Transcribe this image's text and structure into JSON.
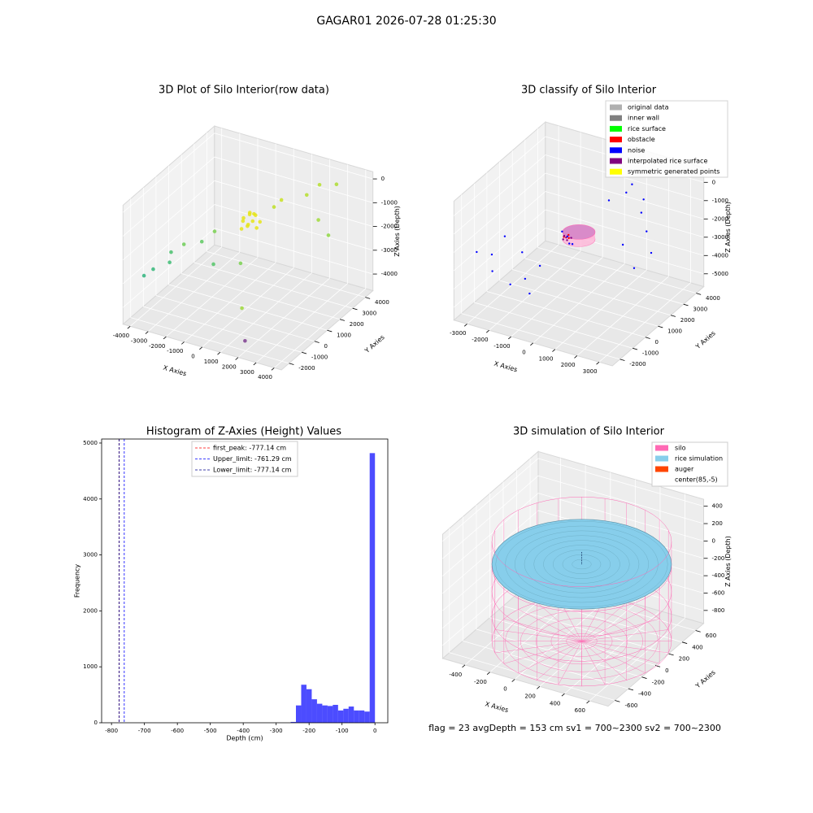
{
  "suptitle": "GAGAR01 2026-07-28 01:25:30",
  "chart_data": [
    {
      "type": "scatter3d",
      "title": "3D Plot of Silo Interior(row data)",
      "xlabel": "X Axies",
      "ylabel": "Y Axies",
      "zlabel": "Z Axies (Depth)",
      "xlim": [
        -4400,
        4400
      ],
      "xticks": [
        -4000,
        -3000,
        -2000,
        -1000,
        0,
        1000,
        2000,
        3000,
        4000
      ],
      "ylim": [
        -2600,
        4600
      ],
      "yticks": [
        -2000,
        -1000,
        0,
        1000,
        2000,
        3000,
        4000
      ],
      "zlim": [
        -4700,
        300
      ],
      "zticks": [
        -4000,
        -3000,
        -2000,
        -1000,
        0
      ],
      "points": {
        "x": [
          -600,
          -400,
          -200,
          0,
          200,
          -500,
          -300,
          -100,
          100,
          -700,
          -250,
          50,
          1500,
          2500,
          3200,
          -1500,
          800,
          2000,
          -2500,
          -3000,
          -2000,
          -3500,
          -3800,
          -2800,
          -1000,
          1000,
          2800,
          600,
          1500,
          1600
        ],
        "y": [
          1500,
          1700,
          1300,
          1600,
          1400,
          1200,
          1900,
          1100,
          1800,
          1600,
          1500,
          1300,
          3500,
          3000,
          2800,
          500,
          2500,
          3800,
          -500,
          -800,
          200,
          -1500,
          -1800,
          -1200,
          -300,
          -1000,
          4000,
          2200,
          -1600,
          -1500
        ],
        "z": [
          -1300,
          -1200,
          -1400,
          -1100,
          -1500,
          -1600,
          -1250,
          -1350,
          -1450,
          -1500,
          -1000,
          -1200,
          -800,
          -1400,
          -1800,
          -1600,
          -700,
          -400,
          -1900,
          -2200,
          -2000,
          -2700,
          -2900,
          -2400,
          -2500,
          -1700,
          -300,
          -900,
          -3200,
          -4600
        ],
        "colors": [
          "#e5e419",
          "#e5e419",
          "#e5e419",
          "#e5e419",
          "#e5e419",
          "#e5e419",
          "#e5e419",
          "#e5e419",
          "#e5e419",
          "#e5e419",
          "#e5e419",
          "#e5e419",
          "#b5de2b",
          "#a0da39",
          "#8fd744",
          "#7ad151",
          "#c8e020",
          "#b5de2b",
          "#6ece58",
          "#4ac16d",
          "#5ec962",
          "#35b779",
          "#2fb47c",
          "#3dbc74",
          "#54c568",
          "#7ad151",
          "#addc30",
          "#bddf26",
          "#9dd93b",
          "#7e3d8f"
        ]
      }
    },
    {
      "type": "scatter3d",
      "title": "3D classify of Silo Interior",
      "xlabel": "X Axies",
      "ylabel": "Y Axies",
      "zlabel": "Z Axies (Depth)",
      "xlim": [
        -3600,
        3600
      ],
      "xticks": [
        -3000,
        -2000,
        -1000,
        0,
        1000,
        2000,
        3000
      ],
      "ylim": [
        -2600,
        4600
      ],
      "yticks": [
        -2000,
        -1000,
        0,
        1000,
        2000,
        3000,
        4000
      ],
      "zlim": [
        -5700,
        800
      ],
      "zticks": [
        -5000,
        -4000,
        -3000,
        -2000,
        -1000,
        0
      ],
      "series": [
        {
          "name": "original data",
          "color": "#b0b0b0",
          "x": [],
          "y": [],
          "z": []
        },
        {
          "name": "inner wall",
          "color": "#808080",
          "x": [],
          "y": [],
          "z": []
        },
        {
          "name": "rice surface",
          "color": "#00ff00",
          "x": [],
          "y": [],
          "z": []
        },
        {
          "name": "obstacle",
          "color": "#ff0000",
          "x": [
            50,
            -100,
            150
          ],
          "y": [
            100,
            0,
            -50
          ],
          "z": [
            -1400,
            -1500,
            -1450
          ]
        },
        {
          "name": "noise",
          "color": "#0000ff",
          "x": [
            -3200,
            -2800,
            -2500,
            -2000,
            -1500,
            -1000,
            -500,
            500,
            1000,
            1500,
            2000,
            2500,
            3000,
            -2200,
            -1200,
            800,
            1800,
            2800,
            -300,
            400,
            0,
            200
          ],
          "y": [
            -1500,
            -1000,
            -500,
            0,
            -1800,
            -1500,
            -1200,
            2500,
            3000,
            3500,
            1000,
            2000,
            1500,
            -2000,
            -800,
            3800,
            2800,
            500,
            200,
            -200,
            100,
            -100
          ],
          "z": [
            -2500,
            -2800,
            -2000,
            -3000,
            -3500,
            -3200,
            -2500,
            -800,
            -500,
            -1000,
            -1800,
            -1500,
            -2200,
            -2900,
            -4500,
            -600,
            -1200,
            -2500,
            -1400,
            -1600,
            -1500,
            -1700
          ]
        },
        {
          "name": "interpolated rice surface",
          "color": "#800080",
          "x": [
            0,
            100,
            -150,
            200,
            -50
          ],
          "y": [
            0,
            -100,
            100,
            50,
            -150
          ],
          "z": [
            -1500,
            -1550,
            -1520,
            -1480,
            -1530
          ]
        },
        {
          "name": "symmetric generated points",
          "color": "#ffff00",
          "x": [],
          "y": [],
          "z": []
        }
      ]
    },
    {
      "type": "histogram",
      "title": "Histogram of Z-Axies (Height) Values",
      "xlabel": "Depth (cm)",
      "ylabel": "Frequency",
      "xlim": [
        -830,
        39
      ],
      "xticks": [
        -800,
        -700,
        -600,
        -500,
        -400,
        -300,
        -200,
        -100,
        0
      ],
      "ylim": [
        0,
        5072
      ],
      "yticks": [
        0,
        1000,
        2000,
        3000,
        4000,
        5000
      ],
      "color": "#0000ff",
      "bins": [
        -256,
        -240,
        -224,
        -208,
        -192,
        -176,
        -160,
        -144,
        -128,
        -112,
        -96,
        -80,
        -64,
        -48,
        -32,
        -16,
        0
      ],
      "counts": [
        15,
        310,
        680,
        600,
        420,
        340,
        310,
        300,
        320,
        220,
        250,
        290,
        220,
        220,
        200,
        4820
      ],
      "vlines": [
        {
          "label": "first_peak: -777.14 cm",
          "value": -777.14,
          "color": "#ff0000"
        },
        {
          "label": "Upper_limit: -761.29 cm",
          "value": -761.29,
          "color": "#0000ff"
        },
        {
          "label": "Lower_limit: -777.14 cm",
          "value": -777.14,
          "color": "#00008b"
        }
      ]
    },
    {
      "type": "surface3d",
      "title": "3D simulation of Silo Interior",
      "xlabel": "X Axies",
      "ylabel": "Y Axies",
      "zlabel": "Z Axies (Depth)",
      "xlim": [
        -580,
        750
      ],
      "xticks": [
        -400,
        -200,
        0,
        200,
        400,
        600
      ],
      "ylim": [
        -700,
        720
      ],
      "yticks": [
        -600,
        -400,
        -200,
        0,
        200,
        400,
        600
      ],
      "zlim": [
        -950,
        480
      ],
      "zticks": [
        -800,
        -600,
        -400,
        -200,
        0,
        200,
        400
      ],
      "legend": [
        {
          "name": "silo",
          "color": "#ff69b4"
        },
        {
          "name": "rice simulation",
          "color": "#87ceeb"
        },
        {
          "name": "auger",
          "color": "#ff4500"
        },
        {
          "name": "center(85,-5)",
          "color": "#ffffff"
        }
      ],
      "footer": "flag = 23  avgDepth = 153 cm  sv1 = 700~2300  sv2 = 700~2300"
    }
  ]
}
